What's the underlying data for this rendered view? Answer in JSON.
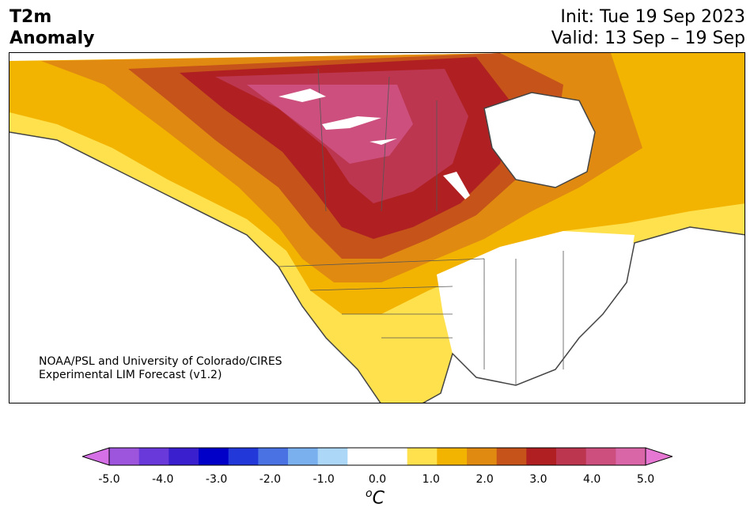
{
  "title": {
    "line1": "T2m",
    "line2": "Anomaly"
  },
  "dates": {
    "init": "Init: Tue 19 Sep 2023",
    "valid": "Valid: 13 Sep – 19 Sep"
  },
  "credit": {
    "line1": "NOAA/PSL and University of Colorado/CIRES",
    "line2": "Experimental LIM Forecast (v1.2)"
  },
  "colorbar": {
    "colors": [
      "#d670e6",
      "#9d55dd",
      "#6a39d9",
      "#3a1fcf",
      "#0000c8",
      "#2238d8",
      "#4a72e3",
      "#7bb0ef",
      "#acd7f7",
      "#ffffff",
      "#ffffff",
      "#ffe14d",
      "#f2b400",
      "#e08a11",
      "#c5531a",
      "#b02022",
      "#bc3650",
      "#cc4f7d",
      "#d966a6",
      "#e678d3"
    ],
    "tick_labels": [
      "-5.0",
      "-4.0",
      "-3.0",
      "-2.0",
      "-1.0",
      "0.0",
      "1.0",
      "2.0",
      "3.0",
      "4.0",
      "5.0"
    ],
    "unit_superscript": "o",
    "unit": "C"
  }
}
